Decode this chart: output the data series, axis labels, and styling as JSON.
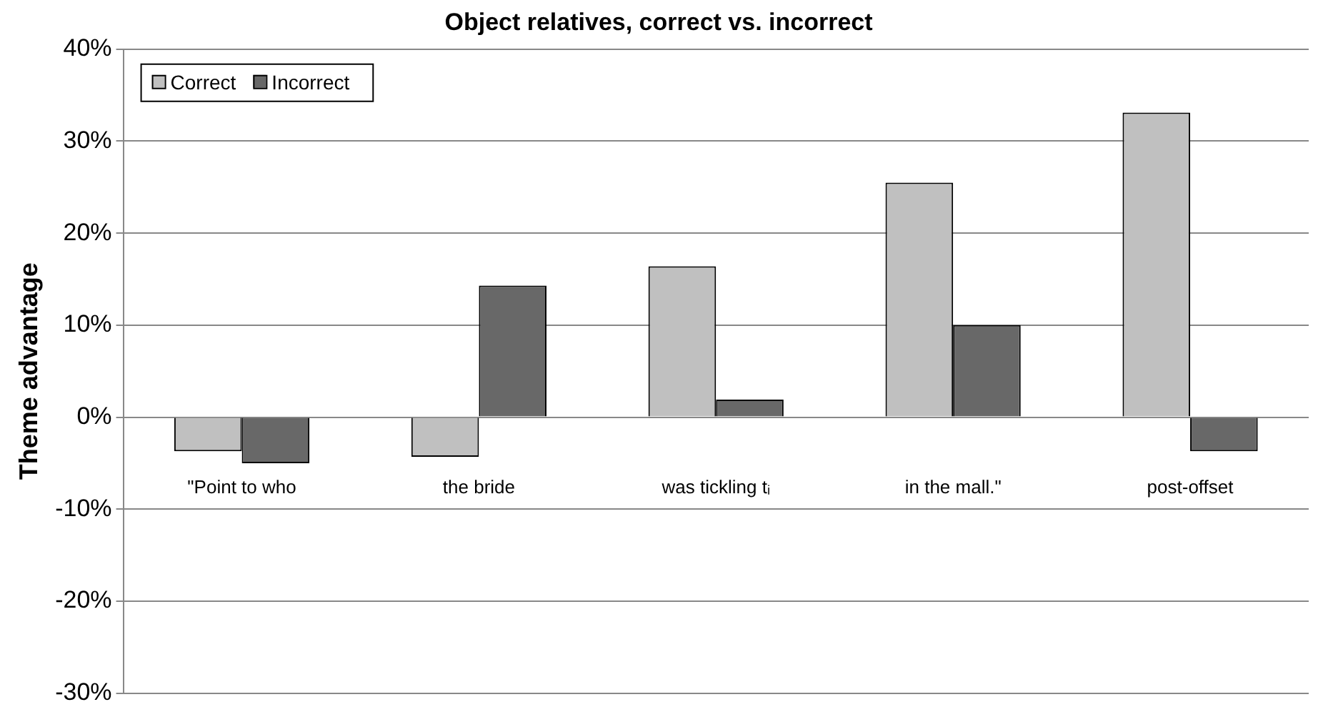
{
  "chart_data": {
    "type": "bar",
    "title": "Object relatives, correct vs. incorrect",
    "ylabel": "Theme advantage",
    "categories": [
      "\"Point to who",
      "the bride",
      "was tickling tᵢ",
      "in the mall.\"",
      "post-offset"
    ],
    "series": [
      {
        "name": "Correct",
        "color": "#c0c0c0",
        "values": [
          -3.7,
          -4.3,
          16.4,
          25.5,
          33.1
        ]
      },
      {
        "name": "Incorrect",
        "color": "#686868",
        "values": [
          -5.0,
          14.3,
          1.9,
          10.0,
          -3.7
        ]
      }
    ],
    "ylim": [
      -30,
      40
    ],
    "yticks": [
      {
        "value": -30,
        "label": "-30%"
      },
      {
        "value": -20,
        "label": "-20%"
      },
      {
        "value": -10,
        "label": "-10%"
      },
      {
        "value": 0,
        "label": "0%"
      },
      {
        "value": 10,
        "label": "10%"
      },
      {
        "value": 20,
        "label": "20%"
      },
      {
        "value": 30,
        "label": "30%"
      },
      {
        "value": 40,
        "label": "40%"
      }
    ],
    "grid": "y",
    "legend": "top left"
  }
}
